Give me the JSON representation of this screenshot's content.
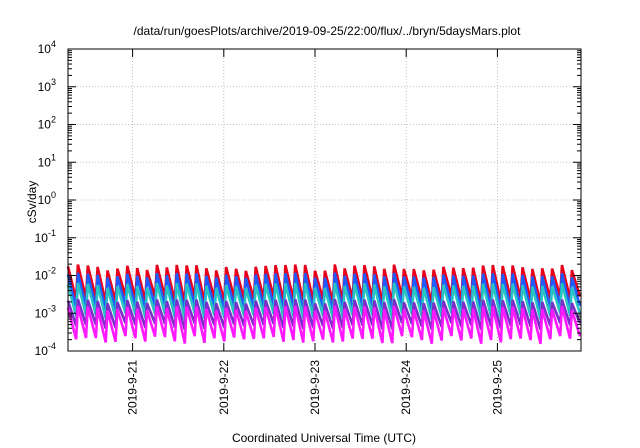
{
  "chart_data": {
    "type": "line",
    "title": "/data/run/goesPlots/archive/2019-09-25/22:00/flux/../bryn/5daysMars.plot",
    "xlabel": "Coordinated Universal Time (UTC)",
    "ylabel": "cSv/day",
    "y_scale": "log",
    "ylim_exponents": [
      -4,
      4
    ],
    "y_tick_base": "10",
    "y_tick_exponents": [
      "-4",
      "-3",
      "-2",
      "-1",
      "0",
      "1",
      "2",
      "3",
      "4"
    ],
    "xlim": [
      "2019-09-20 07:00",
      "2019-09-25 22:00"
    ],
    "x_ticks": [
      "2019-9-21",
      "2019-9-22",
      "2019-9-23",
      "2019-9-24",
      "2019-9-25"
    ],
    "grid": true,
    "sawtooth_period_hours": 2.6,
    "series": [
      {
        "color": "#e8001a",
        "peak_range": [
          0.011,
          0.02
        ],
        "trough_range": [
          0.0016,
          0.0028
        ]
      },
      {
        "color": "#1f5cff",
        "peak_range": [
          0.0075,
          0.012
        ],
        "trough_range": [
          0.0009,
          0.0016
        ]
      },
      {
        "color": "#28c4c4",
        "peak_range": [
          0.004,
          0.0065
        ],
        "trough_range": [
          0.0006,
          0.001
        ]
      },
      {
        "color": "#7a2fc9",
        "peak_range": [
          0.0016,
          0.0024
        ],
        "trough_range": [
          0.00032,
          0.00055
        ]
      },
      {
        "color": "#ff19ff",
        "peak_range": [
          0.001,
          0.0016
        ],
        "trough_range": [
          0.00013,
          0.00025
        ]
      }
    ]
  }
}
